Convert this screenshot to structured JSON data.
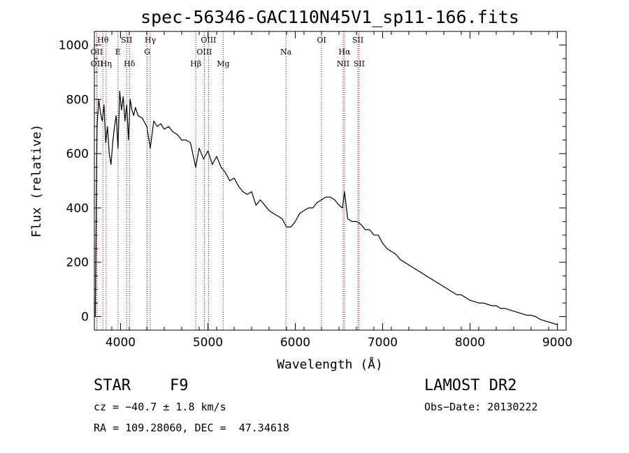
{
  "chart_data": {
    "type": "line",
    "title": "spec-56346-GAC110N45V1_sp11-166.fits",
    "xlabel": "Wavelength (Å)",
    "ylabel": "Flux (relative)",
    "xlim": [
      3700,
      9100
    ],
    "ylim": [
      -50,
      1050
    ],
    "xticks": [
      4000,
      5000,
      6000,
      7000,
      8000,
      9000
    ],
    "yticks": [
      0,
      200,
      400,
      600,
      800,
      1000
    ],
    "grid": false,
    "line_color": "#000000",
    "marker_color": "#8b0000",
    "series": [
      {
        "x": [
          3710,
          3730,
          3750,
          3770,
          3790,
          3810,
          3830,
          3850,
          3870,
          3890,
          3910,
          3930,
          3950,
          3970,
          3990,
          4010,
          4030,
          4050,
          4070,
          4090,
          4110,
          4130,
          4150,
          4170,
          4200,
          4250,
          4300,
          4340,
          4380,
          4420,
          4460,
          4500,
          4550,
          4600,
          4650,
          4700,
          4750,
          4800,
          4860,
          4900,
          4950,
          5000,
          5050,
          5100,
          5150,
          5200,
          5250,
          5300,
          5350,
          5400,
          5450,
          5500,
          5550,
          5600,
          5650,
          5700,
          5750,
          5800,
          5850,
          5900,
          5950,
          6000,
          6050,
          6100,
          6150,
          6200,
          6250,
          6300,
          6350,
          6400,
          6450,
          6500,
          6540,
          6563,
          6600,
          6650,
          6700,
          6750,
          6800,
          6850,
          6900,
          6950,
          7000,
          7050,
          7100,
          7150,
          7200,
          7250,
          7300,
          7350,
          7400,
          7450,
          7500,
          7550,
          7600,
          7650,
          7700,
          7750,
          7800,
          7850,
          7900,
          7950,
          8000,
          8050,
          8100,
          8150,
          8200,
          8250,
          8300,
          8350,
          8400,
          8450,
          8500,
          8550,
          8600,
          8650,
          8700,
          8750,
          8800,
          8850,
          8900,
          8950,
          9000
        ],
        "y": [
          0,
          700,
          800,
          750,
          720,
          780,
          640,
          700,
          600,
          560,
          640,
          700,
          740,
          620,
          830,
          760,
          810,
          720,
          780,
          650,
          800,
          760,
          740,
          770,
          740,
          730,
          700,
          620,
          720,
          700,
          710,
          690,
          700,
          680,
          670,
          650,
          650,
          640,
          550,
          620,
          580,
          610,
          560,
          590,
          550,
          530,
          500,
          510,
          480,
          460,
          450,
          460,
          410,
          430,
          410,
          390,
          380,
          370,
          360,
          330,
          330,
          350,
          380,
          390,
          400,
          400,
          420,
          430,
          440,
          440,
          430,
          410,
          400,
          460,
          360,
          350,
          350,
          340,
          320,
          320,
          300,
          300,
          270,
          250,
          240,
          230,
          210,
          200,
          190,
          180,
          170,
          160,
          150,
          140,
          130,
          120,
          110,
          100,
          90,
          80,
          80,
          70,
          60,
          55,
          50,
          50,
          45,
          40,
          40,
          30,
          30,
          25,
          20,
          15,
          10,
          5,
          5,
          0,
          -10,
          -15,
          -20,
          -25,
          -30
        ]
      }
    ],
    "lines": [
      {
        "label": "OII",
        "wavelength": 3727,
        "row": 2
      },
      {
        "label": "OII",
        "wavelength": 3729,
        "row": 3
      },
      {
        "label": "Hθ",
        "wavelength": 3798,
        "row": 1
      },
      {
        "label": "Hη",
        "wavelength": 3835,
        "row": 3
      },
      {
        "label": "E",
        "wavelength": 3970,
        "row": 2
      },
      {
        "label": "SII",
        "wavelength": 4070,
        "row": 1
      },
      {
        "label": "Hδ",
        "wavelength": 4102,
        "row": 3
      },
      {
        "label": "Hγ",
        "wavelength": 4340,
        "row": 1
      },
      {
        "label": "G",
        "wavelength": 4305,
        "row": 2
      },
      {
        "label": "Hβ",
        "wavelength": 4861,
        "row": 3
      },
      {
        "label": "OIII",
        "wavelength": 4959,
        "row": 2
      },
      {
        "label": "OIII",
        "wavelength": 5007,
        "row": 1
      },
      {
        "label": "Mg",
        "wavelength": 5175,
        "row": 3
      },
      {
        "label": "Na",
        "wavelength": 5893,
        "row": 2
      },
      {
        "label": "OI",
        "wavelength": 6300,
        "row": 1
      },
      {
        "label": "Hα",
        "wavelength": 6563,
        "row": 2
      },
      {
        "label": "NII",
        "wavelength": 6548,
        "row": 3
      },
      {
        "label": "SII",
        "wavelength": 6717,
        "row": 1
      },
      {
        "label": "SII",
        "wavelength": 6731,
        "row": 3
      }
    ]
  },
  "info": {
    "class": "STAR",
    "subclass": "F9",
    "release": "LAMOST DR2",
    "cz": "cz = −40.7 ± 1.8 km/s",
    "obs_date": "Obs−Date: 20130222",
    "radec": "RA = 109.28060, DEC =  47.34618"
  }
}
